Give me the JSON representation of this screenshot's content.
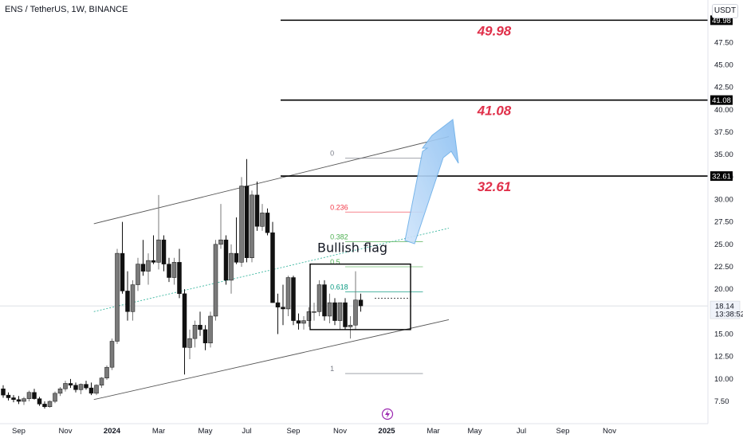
{
  "header": {
    "symbol_title": "ENS / TetherUS, 1W, BINANCE",
    "currency": "USDT"
  },
  "chart_data": {
    "type": "candlestick",
    "title": "ENS / TetherUS, 1W, BINANCE",
    "ylim": [
      6,
      51
    ],
    "y_ticks": [
      "7.50",
      "10.00",
      "12.50",
      "15.00",
      "17.50",
      "20.00",
      "22.50",
      "25.00",
      "27.50",
      "30.00",
      "32.50",
      "35.00",
      "37.50",
      "40.00",
      "42.50",
      "45.00",
      "47.50"
    ],
    "x_ticks": [
      {
        "label": "Sep",
        "week": 3,
        "year": false
      },
      {
        "label": "Nov",
        "week": 12,
        "year": false
      },
      {
        "label": "2024",
        "week": 21,
        "year": true
      },
      {
        "label": "Mar",
        "week": 30,
        "year": false
      },
      {
        "label": "May",
        "week": 39,
        "year": false
      },
      {
        "label": "Jul",
        "week": 47,
        "year": false
      },
      {
        "label": "Sep",
        "week": 56,
        "year": false
      },
      {
        "label": "Nov",
        "week": 65,
        "year": false
      },
      {
        "label": "2025",
        "week": 74,
        "year": true
      },
      {
        "label": "Mar",
        "week": 83,
        "year": false
      },
      {
        "label": "May",
        "week": 91,
        "year": false
      },
      {
        "label": "Jul",
        "week": 100,
        "year": false
      },
      {
        "label": "Sep",
        "week": 108,
        "year": false
      },
      {
        "label": "Nov",
        "week": 117,
        "year": false
      }
    ],
    "candles": [
      [
        8.9,
        9.3,
        7.9,
        8.2
      ],
      [
        8.2,
        8.5,
        7.6,
        7.9
      ],
      [
        7.9,
        8.2,
        7.4,
        7.7
      ],
      [
        7.7,
        8.1,
        7.2,
        7.5
      ],
      [
        7.5,
        8.0,
        7.1,
        7.8
      ],
      [
        7.8,
        8.7,
        7.5,
        8.5
      ],
      [
        8.5,
        8.9,
        7.7,
        7.8
      ],
      [
        7.8,
        8.0,
        7.0,
        7.2
      ],
      [
        7.2,
        7.5,
        6.7,
        6.9
      ],
      [
        6.9,
        7.6,
        6.8,
        7.5
      ],
      [
        7.5,
        8.6,
        7.3,
        8.4
      ],
      [
        8.4,
        9.1,
        8.1,
        8.9
      ],
      [
        8.9,
        9.8,
        8.6,
        9.5
      ],
      [
        9.5,
        10.0,
        9.0,
        9.3
      ],
      [
        9.3,
        9.6,
        8.5,
        8.8
      ],
      [
        8.8,
        9.5,
        8.3,
        9.4
      ],
      [
        9.4,
        9.8,
        8.8,
        9.0
      ],
      [
        9.0,
        9.6,
        8.2,
        8.4
      ],
      [
        8.4,
        9.4,
        8.2,
        9.3
      ],
      [
        9.3,
        10.2,
        9.0,
        10.1
      ],
      [
        10.1,
        11.5,
        9.9,
        11.3
      ],
      [
        11.3,
        14.5,
        11.0,
        14.2
      ],
      [
        14.2,
        24.5,
        13.9,
        24.0
      ],
      [
        24.0,
        27.5,
        19.5,
        19.8
      ],
      [
        19.8,
        22.0,
        16.5,
        17.5
      ],
      [
        17.5,
        21.0,
        16.5,
        20.5
      ],
      [
        20.5,
        23.5,
        19.8,
        22.8
      ],
      [
        22.8,
        25.5,
        21.5,
        22.0
      ],
      [
        22.0,
        24.0,
        20.5,
        23.2
      ],
      [
        23.2,
        26.0,
        22.8,
        23.0
      ],
      [
        23.0,
        30.5,
        22.2,
        25.5
      ],
      [
        25.5,
        26.0,
        22.0,
        22.8
      ],
      [
        22.8,
        23.5,
        20.8,
        21.3
      ],
      [
        21.3,
        23.5,
        20.5,
        23.0
      ],
      [
        23.0,
        24.5,
        19.0,
        19.5
      ],
      [
        19.5,
        20.0,
        10.5,
        13.5
      ],
      [
        13.5,
        15.5,
        12.2,
        14.5
      ],
      [
        14.5,
        16.5,
        13.5,
        16.0
      ],
      [
        16.0,
        17.5,
        14.8,
        15.5
      ],
      [
        15.5,
        16.0,
        13.2,
        14.0
      ],
      [
        14.0,
        17.5,
        13.5,
        17.0
      ],
      [
        17.0,
        25.5,
        16.5,
        25.0
      ],
      [
        25.0,
        29.5,
        24.5,
        25.5
      ],
      [
        25.5,
        26.0,
        20.5,
        21.0
      ],
      [
        21.0,
        25.0,
        19.5,
        24.0
      ],
      [
        24.0,
        28.0,
        22.8,
        23.0
      ],
      [
        23.0,
        32.5,
        22.5,
        31.5
      ],
      [
        31.5,
        34.5,
        23.0,
        23.5
      ],
      [
        23.5,
        31.0,
        23.0,
        30.5
      ],
      [
        30.5,
        32.0,
        26.5,
        27.0
      ],
      [
        27.0,
        29.5,
        26.5,
        28.5
      ],
      [
        28.5,
        29.0,
        26.0,
        26.3
      ],
      [
        26.3,
        27.5,
        18.5,
        18.5
      ],
      [
        18.5,
        19.5,
        15.0,
        18.0
      ],
      [
        18.0,
        20.5,
        16.0,
        17.8
      ],
      [
        17.8,
        21.5,
        17.0,
        21.3
      ],
      [
        21.3,
        21.5,
        16.0,
        16.5
      ],
      [
        16.5,
        17.3,
        15.5,
        16.2
      ],
      [
        16.2,
        17.0,
        15.5,
        16.5
      ],
      [
        16.5,
        18.0,
        15.8,
        17.5
      ],
      [
        17.5,
        18.5,
        16.5,
        17.5
      ],
      [
        17.5,
        21.0,
        17.0,
        20.5
      ],
      [
        20.5,
        21.0,
        16.5,
        17.0
      ],
      [
        17.0,
        19.5,
        16.2,
        18.5
      ],
      [
        18.5,
        19.0,
        16.0,
        16.5
      ],
      [
        16.5,
        18.5,
        15.5,
        18.5
      ],
      [
        18.5,
        19.0,
        15.5,
        15.8
      ],
      [
        15.8,
        17.0,
        14.5,
        16.0
      ],
      [
        16.0,
        22.0,
        15.5,
        18.8
      ],
      [
        18.8,
        19.5,
        17.5,
        18.14
      ]
    ],
    "channel_upper": {
      "from": {
        "week": 17.5,
        "price": 27.3
      },
      "to": {
        "week": 86,
        "price": 37.0
      }
    },
    "channel_lower": {
      "from": {
        "week": 17.5,
        "price": 7.7
      },
      "to": {
        "week": 86,
        "price": 16.6
      }
    },
    "channel_mid": {
      "from": {
        "week": 17.5,
        "price": 17.5
      },
      "to": {
        "week": 86,
        "price": 26.8
      }
    },
    "fibonacci": [
      {
        "label": "0",
        "price": 34.6,
        "color": "#787b86"
      },
      {
        "label": "0.236",
        "price": 28.6,
        "color": "#f23645"
      },
      {
        "label": "0.382",
        "price": 25.3,
        "color": "#4caf50"
      },
      {
        "label": "0.5",
        "price": 22.5,
        "color": "#4caf50"
      },
      {
        "label": "0.618",
        "price": 19.7,
        "color": "#089981"
      },
      {
        "label": "1",
        "price": 10.6,
        "color": "#787b86"
      }
    ],
    "targets": [
      {
        "label": "49.98",
        "price": 49.98
      },
      {
        "label": "41.08",
        "price": 41.08
      },
      {
        "label": "32.61",
        "price": 32.61
      }
    ],
    "flag": {
      "label": "Bullish flag",
      "top": 22.8,
      "bottom": 15.5
    },
    "last_price": {
      "value": "18.14",
      "countdown": "13:38:52"
    }
  }
}
